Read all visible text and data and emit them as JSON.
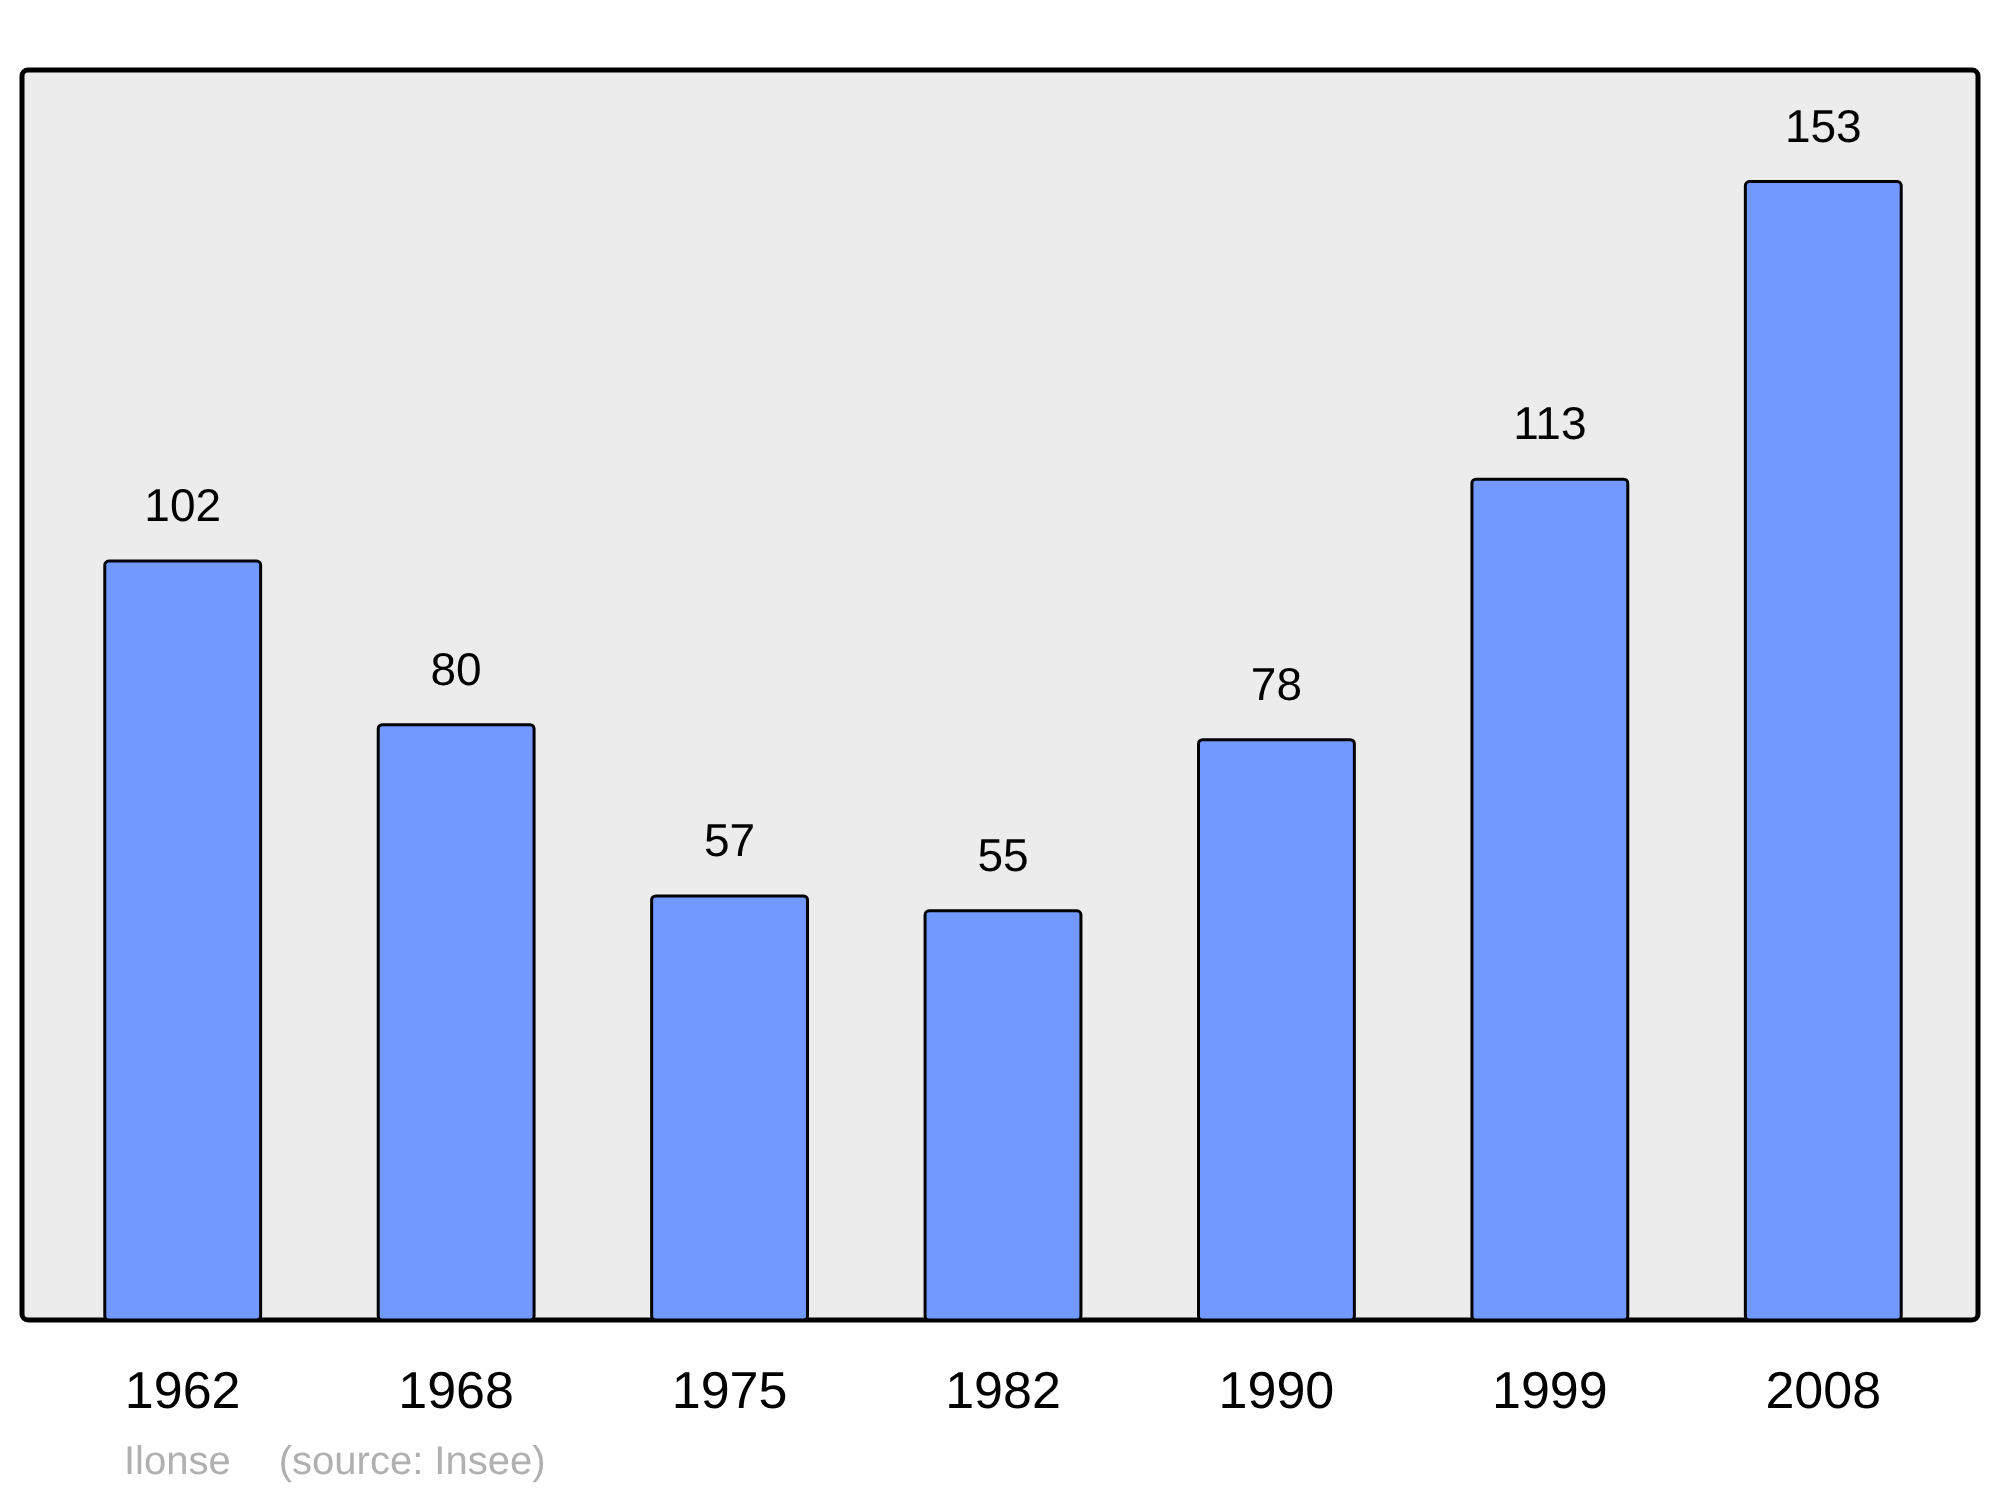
{
  "chart_data": {
    "type": "bar",
    "categories": [
      "1962",
      "1968",
      "1975",
      "1982",
      "1990",
      "1999",
      "2008"
    ],
    "values": [
      102,
      80,
      57,
      55,
      78,
      113,
      153
    ],
    "color": "#7299ff",
    "ylim": [
      0,
      168
    ],
    "data_labels": true,
    "tick_labels": "x",
    "annotations": [
      "Ilonse",
      "(source: Insee)"
    ]
  }
}
